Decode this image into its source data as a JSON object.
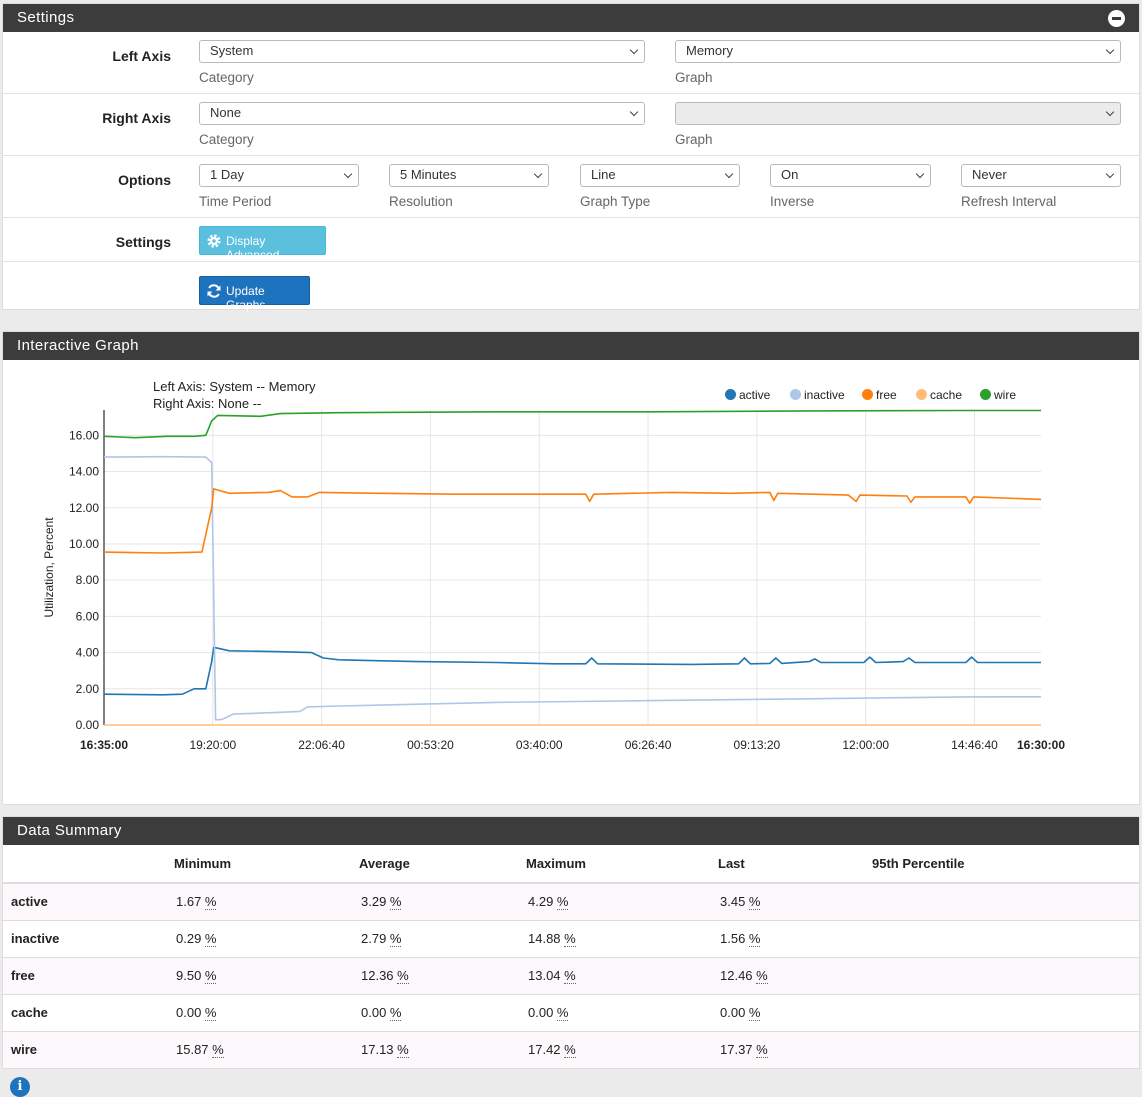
{
  "settings_panel": {
    "title": "Settings",
    "left_axis": {
      "label": "Left Axis",
      "category_value": "System",
      "category_help": "Category",
      "graph_value": "Memory",
      "graph_help": "Graph"
    },
    "right_axis": {
      "label": "Right Axis",
      "category_value": "None",
      "category_help": "Category",
      "graph_value": "",
      "graph_help": "Graph"
    },
    "options": {
      "label": "Options",
      "time_period": {
        "value": "1 Day",
        "help": "Time Period"
      },
      "resolution": {
        "value": "5 Minutes",
        "help": "Resolution"
      },
      "graph_type": {
        "value": "Line",
        "help": "Graph Type"
      },
      "inverse": {
        "value": "On",
        "help": "Inverse"
      },
      "refresh_interval": {
        "value": "Never",
        "help": "Refresh Interval"
      }
    },
    "settings_row": {
      "label": "Settings",
      "display_advanced_label": "Display Advanced"
    },
    "update_graphs_label": "Update Graphs"
  },
  "graph_panel": {
    "title": "Interactive Graph"
  },
  "chart_data": {
    "type": "line",
    "title_lines": [
      "Left Axis: System -- Memory",
      "Right Axis: None --"
    ],
    "ylabel": "Utilization, Percent",
    "xlabel": "",
    "ylim": [
      0,
      17.4
    ],
    "y_ticks": [
      "0.00",
      "2.00",
      "4.00",
      "6.00",
      "8.00",
      "10.00",
      "12.00",
      "14.00",
      "16.00"
    ],
    "x_ticks": [
      "16:35:00",
      "19:20:00",
      "22:06:40",
      "00:53:20",
      "03:40:00",
      "06:26:40",
      "09:13:20",
      "12:00:00",
      "14:46:40",
      "16:30:00"
    ],
    "x_tick_bold": [
      true,
      false,
      false,
      false,
      false,
      false,
      false,
      false,
      false,
      true
    ],
    "grid": true,
    "legend_position": "top-right",
    "x_range_hours": [
      0,
      23.92
    ],
    "series": [
      {
        "name": "active",
        "color": "#1f77b4",
        "points": [
          [
            0,
            1.7
          ],
          [
            1.5,
            1.67
          ],
          [
            2.0,
            1.7
          ],
          [
            2.3,
            2.0
          ],
          [
            2.6,
            2.0
          ],
          [
            2.75,
            3.5
          ],
          [
            2.8,
            4.29
          ],
          [
            3.2,
            4.1
          ],
          [
            4.5,
            4.05
          ],
          [
            5.3,
            4.0
          ],
          [
            5.6,
            3.7
          ],
          [
            6.0,
            3.6
          ],
          [
            8,
            3.5
          ],
          [
            10,
            3.45
          ],
          [
            11.5,
            3.38
          ],
          [
            12.3,
            3.38
          ],
          [
            12.45,
            3.7
          ],
          [
            12.6,
            3.38
          ],
          [
            15,
            3.35
          ],
          [
            16.2,
            3.38
          ],
          [
            16.35,
            3.7
          ],
          [
            16.5,
            3.38
          ],
          [
            17.0,
            3.4
          ],
          [
            17.15,
            3.7
          ],
          [
            17.3,
            3.4
          ],
          [
            18.0,
            3.5
          ],
          [
            18.15,
            3.65
          ],
          [
            18.3,
            3.45
          ],
          [
            19.4,
            3.45
          ],
          [
            19.55,
            3.75
          ],
          [
            19.7,
            3.45
          ],
          [
            20.4,
            3.5
          ],
          [
            20.55,
            3.7
          ],
          [
            20.7,
            3.45
          ],
          [
            22.0,
            3.45
          ],
          [
            22.15,
            3.75
          ],
          [
            22.3,
            3.45
          ],
          [
            23.92,
            3.45
          ]
        ]
      },
      {
        "name": "inactive",
        "color": "#aec7e8",
        "points": [
          [
            0,
            14.8
          ],
          [
            1.5,
            14.82
          ],
          [
            2.6,
            14.8
          ],
          [
            2.75,
            14.5
          ],
          [
            2.85,
            0.29
          ],
          [
            3.0,
            0.3
          ],
          [
            3.3,
            0.6
          ],
          [
            4.5,
            0.7
          ],
          [
            5.0,
            0.75
          ],
          [
            5.2,
            1.0
          ],
          [
            6,
            1.05
          ],
          [
            8,
            1.15
          ],
          [
            10,
            1.25
          ],
          [
            12,
            1.3
          ],
          [
            14,
            1.35
          ],
          [
            16,
            1.4
          ],
          [
            18,
            1.45
          ],
          [
            20,
            1.5
          ],
          [
            22,
            1.55
          ],
          [
            23.92,
            1.56
          ]
        ]
      },
      {
        "name": "free",
        "color": "#ff7f0e",
        "points": [
          [
            0,
            9.55
          ],
          [
            1.5,
            9.5
          ],
          [
            2.5,
            9.55
          ],
          [
            2.75,
            12.0
          ],
          [
            2.8,
            13.04
          ],
          [
            3.2,
            12.8
          ],
          [
            4.2,
            12.85
          ],
          [
            4.5,
            12.95
          ],
          [
            4.8,
            12.6
          ],
          [
            5.2,
            12.6
          ],
          [
            5.5,
            12.85
          ],
          [
            7,
            12.8
          ],
          [
            9,
            12.75
          ],
          [
            11.5,
            12.75
          ],
          [
            12.3,
            12.75
          ],
          [
            12.4,
            12.35
          ],
          [
            12.5,
            12.75
          ],
          [
            14.5,
            12.85
          ],
          [
            16,
            12.8
          ],
          [
            17.0,
            12.85
          ],
          [
            17.1,
            12.4
          ],
          [
            17.2,
            12.8
          ],
          [
            19,
            12.7
          ],
          [
            19.2,
            12.35
          ],
          [
            19.3,
            12.7
          ],
          [
            20.5,
            12.65
          ],
          [
            20.6,
            12.3
          ],
          [
            20.7,
            12.6
          ],
          [
            22.0,
            12.6
          ],
          [
            22.1,
            12.25
          ],
          [
            22.2,
            12.6
          ],
          [
            23.92,
            12.46
          ]
        ]
      },
      {
        "name": "cache",
        "color": "#ffbb78",
        "points": [
          [
            0,
            0.0
          ],
          [
            23.92,
            0.0
          ]
        ]
      },
      {
        "name": "wire",
        "color": "#2ca02c",
        "points": [
          [
            0,
            15.95
          ],
          [
            0.8,
            15.87
          ],
          [
            1.6,
            15.95
          ],
          [
            2.3,
            15.95
          ],
          [
            2.6,
            16.0
          ],
          [
            2.75,
            16.8
          ],
          [
            2.9,
            17.1
          ],
          [
            4.0,
            17.05
          ],
          [
            4.5,
            17.2
          ],
          [
            6,
            17.25
          ],
          [
            10,
            17.3
          ],
          [
            14,
            17.3
          ],
          [
            18,
            17.35
          ],
          [
            22,
            17.37
          ],
          [
            23.92,
            17.37
          ]
        ]
      }
    ]
  },
  "summary_panel": {
    "title": "Data Summary",
    "columns": [
      "Minimum",
      "Average",
      "Maximum",
      "Last",
      "95th Percentile"
    ],
    "rows": [
      {
        "name": "active",
        "min": "1.67",
        "avg": "3.29",
        "max": "4.29",
        "last": "3.45",
        "unit": "%"
      },
      {
        "name": "inactive",
        "min": "0.29",
        "avg": "2.79",
        "max": "14.88",
        "last": "1.56",
        "unit": "%"
      },
      {
        "name": "free",
        "min": "9.50",
        "avg": "12.36",
        "max": "13.04",
        "last": "12.46",
        "unit": "%"
      },
      {
        "name": "cache",
        "min": "0.00",
        "avg": "0.00",
        "max": "0.00",
        "last": "0.00",
        "unit": "%"
      },
      {
        "name": "wire",
        "min": "15.87",
        "avg": "17.13",
        "max": "17.42",
        "last": "17.37",
        "unit": "%"
      }
    ]
  },
  "footer": {
    "info_icon": "info-icon"
  }
}
